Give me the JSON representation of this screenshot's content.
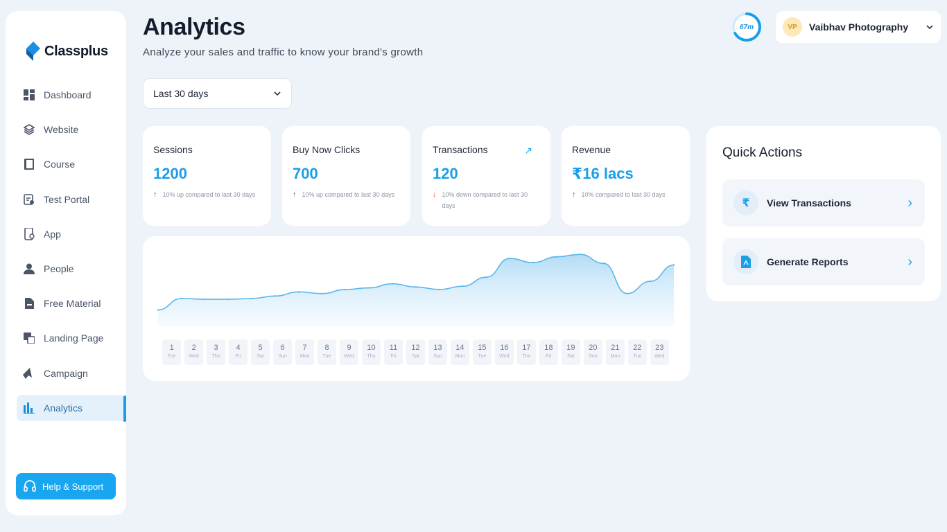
{
  "brand": {
    "name": "Classplus"
  },
  "sidebar": {
    "items": [
      {
        "label": "Dashboard",
        "icon": "dashboard-icon"
      },
      {
        "label": "Website",
        "icon": "website-icon"
      },
      {
        "label": "Course",
        "icon": "course-icon"
      },
      {
        "label": "Test Portal",
        "icon": "test-portal-icon"
      },
      {
        "label": "App",
        "icon": "app-icon"
      },
      {
        "label": "People",
        "icon": "people-icon"
      },
      {
        "label": "Free Material",
        "icon": "free-material-icon"
      },
      {
        "label": "Landing Page",
        "icon": "landing-page-icon"
      },
      {
        "label": "Campaign",
        "icon": "campaign-icon"
      },
      {
        "label": "Analytics",
        "icon": "analytics-icon"
      }
    ],
    "active": "Analytics",
    "help_label": "Help & Support"
  },
  "header": {
    "title": "Analytics",
    "subtitle": "Analyze your sales and traffic to know your brand's growth",
    "period": "Last 30 days",
    "progress_label": "67m",
    "progress_fraction": 0.67,
    "account": {
      "initials": "VP",
      "name": "Vaibhav Photography"
    }
  },
  "stats": [
    {
      "label": "Sessions",
      "value": "1200",
      "note": "10% up compared to last 30 days",
      "direction": "up"
    },
    {
      "label": "Buy Now Clicks",
      "value": "700",
      "note": "10% up compared to last 30 days",
      "direction": "up"
    },
    {
      "label": "Transactions",
      "value": "120",
      "note": "10% down compared to last 30 days",
      "direction": "down"
    },
    {
      "label": "Revenue",
      "value": "₹16 lacs",
      "note": "10% compared to last 30 days",
      "direction": "up"
    }
  ],
  "chart_data": {
    "type": "area",
    "x": [
      "1",
      "2",
      "3",
      "4",
      "5",
      "6",
      "7",
      "8",
      "9",
      "10",
      "11",
      "12",
      "13",
      "14",
      "15",
      "16",
      "17",
      "18",
      "19",
      "20",
      "21",
      "22",
      "23"
    ],
    "x_sub": [
      "Tue",
      "Wed",
      "Thu",
      "Fri",
      "Sat",
      "Sun",
      "Mon",
      "Tue",
      "Wed",
      "Thu",
      "Fri",
      "Sat",
      "Sun",
      "Mon",
      "Tue",
      "Wed",
      "Thu",
      "Fri",
      "Sat",
      "Sun",
      "Mon",
      "Tue",
      "Wed"
    ],
    "values": [
      20,
      34,
      33,
      33,
      34,
      37,
      42,
      40,
      45,
      47,
      52,
      48,
      45,
      49,
      60,
      83,
      78,
      85,
      88,
      77,
      40,
      55,
      75
    ],
    "ylim": [
      0,
      100
    ],
    "color": "#5bb6ea"
  },
  "quick_actions": {
    "title": "Quick Actions",
    "items": [
      {
        "label": "View Transactions",
        "icon": "rupee-icon"
      },
      {
        "label": "Generate Reports",
        "icon": "report-icon"
      }
    ]
  }
}
